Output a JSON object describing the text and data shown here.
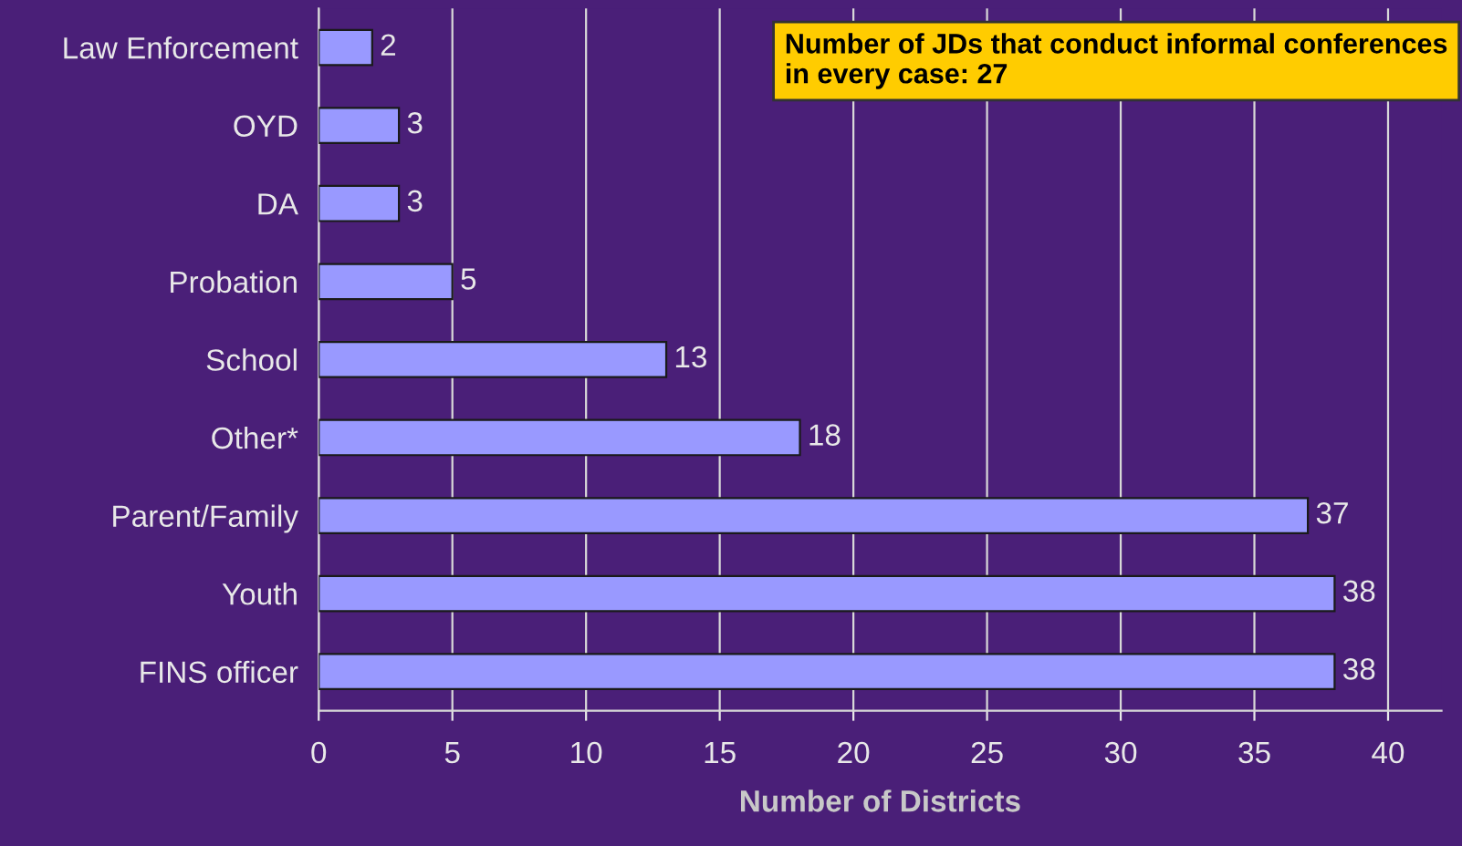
{
  "chart_data": {
    "type": "bar",
    "orientation": "horizontal",
    "categories": [
      "Law Enforcement",
      "OYD",
      "DA",
      "Probation",
      "School",
      "Other*",
      "Parent/Family",
      "Youth",
      "FINS officer"
    ],
    "values": [
      2,
      3,
      3,
      5,
      13,
      18,
      37,
      38,
      38
    ],
    "color": "#9999ff",
    "xlabel": "Number of Districts",
    "xlim": [
      0,
      42
    ],
    "xticks": [
      0,
      5,
      10,
      15,
      20,
      25,
      30,
      35,
      40
    ],
    "grid": "x",
    "data_labels": true,
    "annotations": [
      "Number of JDs that conduct informal conferences in every case: 27"
    ]
  }
}
